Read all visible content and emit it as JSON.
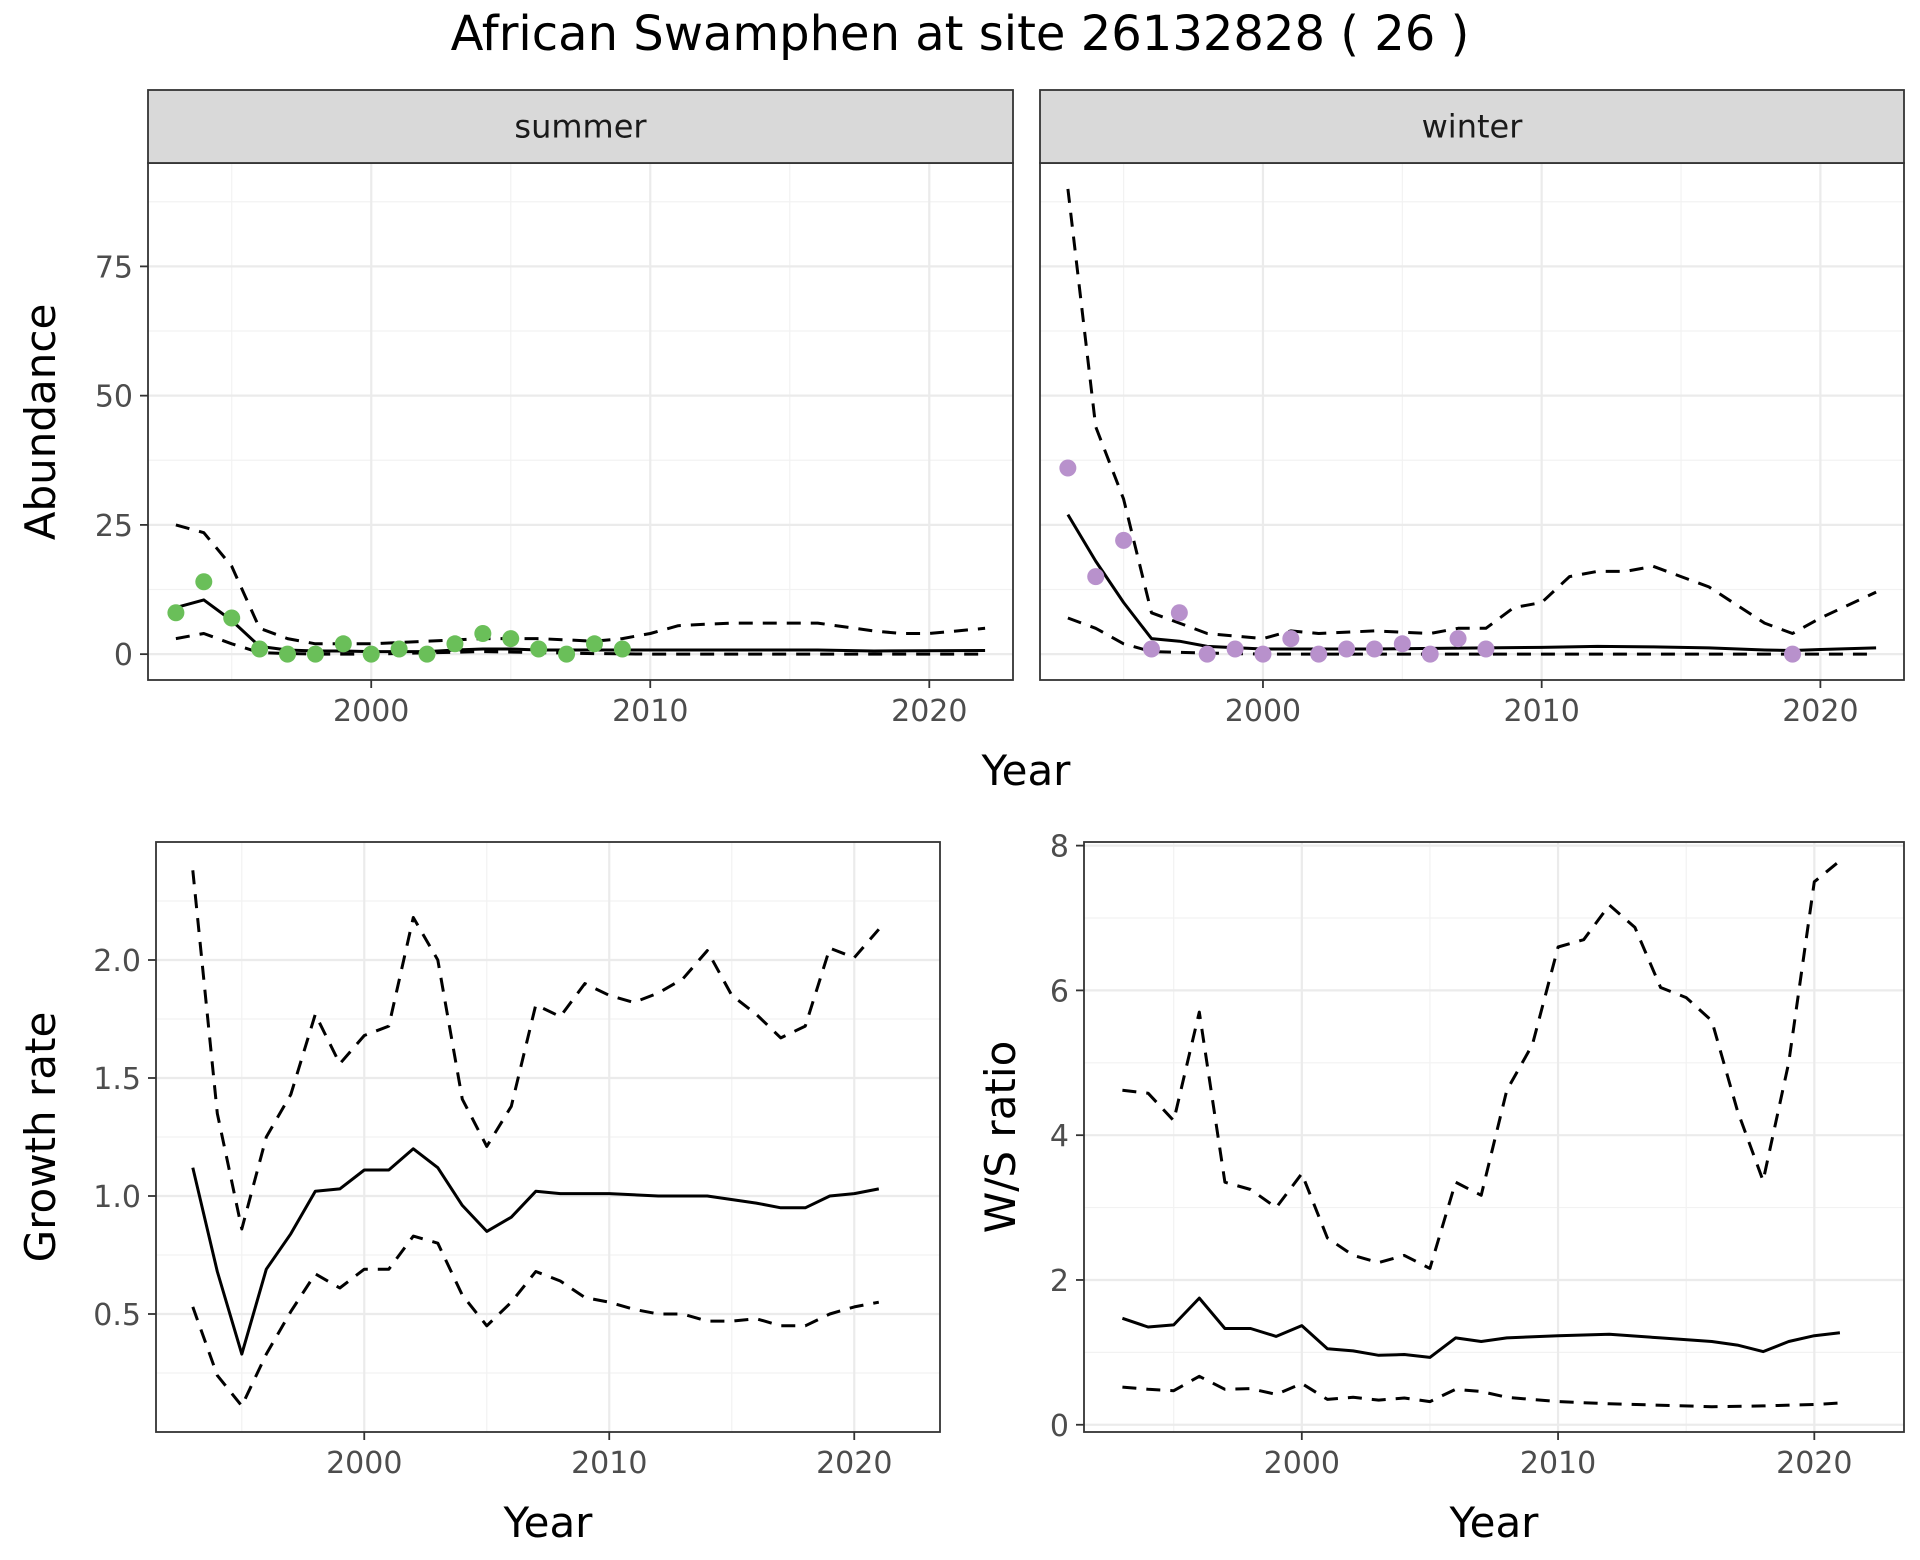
{
  "title": "African Swamphen at site 26132828 ( 26 )",
  "colors": {
    "summer_points": "#6abf59",
    "winter_points": "#b891cc",
    "strip_bg": "#d9d9d9"
  },
  "chart_data": [
    {
      "type": "line",
      "facet": "summer",
      "xlabel": "Year",
      "ylabel": "Abundance",
      "xlim": [
        1992,
        2023
      ],
      "ylim": [
        -5,
        95
      ],
      "x_ticks": [
        2000,
        2010,
        2020
      ],
      "y_ticks": [
        0,
        25,
        50,
        75
      ],
      "points_color": "#6abf59",
      "points": [
        [
          1993,
          8
        ],
        [
          1994,
          14
        ],
        [
          1995,
          7
        ],
        [
          1996,
          1
        ],
        [
          1997,
          0
        ],
        [
          1998,
          0
        ],
        [
          1999,
          2
        ],
        [
          2000,
          0
        ],
        [
          2001,
          1
        ],
        [
          2002,
          0
        ],
        [
          2003,
          2
        ],
        [
          2004,
          4
        ],
        [
          2005,
          3
        ],
        [
          2006,
          1
        ],
        [
          2007,
          0
        ],
        [
          2008,
          2
        ],
        [
          2009,
          1
        ]
      ],
      "estimate": [
        [
          1993,
          9
        ],
        [
          1994,
          10.5
        ],
        [
          1995,
          6.5
        ],
        [
          1996,
          1.5
        ],
        [
          1997,
          0.8
        ],
        [
          1998,
          0.6
        ],
        [
          1999,
          0.6
        ],
        [
          2000,
          0.5
        ],
        [
          2001,
          0.5
        ],
        [
          2002,
          0.5
        ],
        [
          2003,
          0.8
        ],
        [
          2004,
          1
        ],
        [
          2005,
          1
        ],
        [
          2006,
          0.8
        ],
        [
          2007,
          0.8
        ],
        [
          2008,
          0.8
        ],
        [
          2009,
          0.8
        ],
        [
          2012,
          0.8
        ],
        [
          2016,
          0.8
        ],
        [
          2018,
          0.6
        ],
        [
          2022,
          0.7
        ]
      ],
      "lower": [
        [
          1993,
          3
        ],
        [
          1994,
          4
        ],
        [
          1995,
          2
        ],
        [
          1996,
          0.3
        ],
        [
          1997,
          0.1
        ],
        [
          1998,
          0
        ],
        [
          2000,
          0
        ],
        [
          2004,
          0.5
        ],
        [
          2006,
          0.3
        ],
        [
          2008,
          0.1
        ],
        [
          2010,
          0
        ],
        [
          2022,
          0
        ]
      ],
      "upper": [
        [
          1993,
          25
        ],
        [
          1994,
          23.5
        ],
        [
          1995,
          17
        ],
        [
          1996,
          5
        ],
        [
          1997,
          3
        ],
        [
          1998,
          2
        ],
        [
          2000,
          2
        ],
        [
          2002,
          2.5
        ],
        [
          2004,
          3
        ],
        [
          2006,
          3
        ],
        [
          2008,
          2.5
        ],
        [
          2009,
          3
        ],
        [
          2010,
          4
        ],
        [
          2011,
          5.5
        ],
        [
          2012,
          5.8
        ],
        [
          2013,
          6
        ],
        [
          2016,
          6
        ],
        [
          2018,
          4.5
        ],
        [
          2019,
          4
        ],
        [
          2020,
          4
        ],
        [
          2022,
          5
        ]
      ]
    },
    {
      "type": "line",
      "facet": "winter",
      "xlabel": "Year",
      "ylabel": "Abundance",
      "xlim": [
        1992,
        2023
      ],
      "ylim": [
        -5,
        95
      ],
      "x_ticks": [
        2000,
        2010,
        2020
      ],
      "y_ticks": [
        0,
        25,
        50,
        75
      ],
      "points_color": "#b891cc",
      "points": [
        [
          1993,
          36
        ],
        [
          1994,
          15
        ],
        [
          1995,
          22
        ],
        [
          1996,
          1
        ],
        [
          1997,
          8
        ],
        [
          1998,
          0
        ],
        [
          1999,
          1
        ],
        [
          2000,
          0
        ],
        [
          2001,
          3
        ],
        [
          2002,
          0
        ],
        [
          2003,
          1
        ],
        [
          2004,
          1
        ],
        [
          2005,
          2
        ],
        [
          2006,
          0
        ],
        [
          2007,
          3
        ],
        [
          2008,
          1
        ],
        [
          2019,
          0
        ]
      ],
      "estimate": [
        [
          1993,
          27
        ],
        [
          1994,
          18
        ],
        [
          1995,
          10
        ],
        [
          1996,
          3
        ],
        [
          1997,
          2.5
        ],
        [
          1998,
          1.5
        ],
        [
          2000,
          1
        ],
        [
          2004,
          1
        ],
        [
          2008,
          1.2
        ],
        [
          2010,
          1.3
        ],
        [
          2012,
          1.5
        ],
        [
          2014,
          1.4
        ],
        [
          2016,
          1.2
        ],
        [
          2018,
          0.8
        ],
        [
          2019,
          0.7
        ],
        [
          2020,
          0.9
        ],
        [
          2022,
          1.2
        ]
      ],
      "lower": [
        [
          1993,
          7
        ],
        [
          1994,
          5
        ],
        [
          1995,
          2
        ],
        [
          1996,
          0.5
        ],
        [
          1998,
          0.2
        ],
        [
          2000,
          0
        ],
        [
          2022,
          0
        ]
      ],
      "upper": [
        [
          1993,
          90
        ],
        [
          1994,
          44
        ],
        [
          1995,
          30
        ],
        [
          1996,
          8
        ],
        [
          1997,
          6
        ],
        [
          1998,
          4
        ],
        [
          2000,
          3
        ],
        [
          2001,
          4.5
        ],
        [
          2002,
          4
        ],
        [
          2004,
          4.5
        ],
        [
          2006,
          4
        ],
        [
          2007,
          5
        ],
        [
          2008,
          5
        ],
        [
          2009,
          9
        ],
        [
          2010,
          10
        ],
        [
          2011,
          15
        ],
        [
          2012,
          16
        ],
        [
          2013,
          16
        ],
        [
          2014,
          17
        ],
        [
          2016,
          13
        ],
        [
          2018,
          6
        ],
        [
          2019,
          4
        ],
        [
          2020,
          7
        ],
        [
          2022,
          12
        ]
      ]
    },
    {
      "type": "line",
      "xlabel": "Year",
      "ylabel": "Growth rate",
      "xlim": [
        1991.5,
        2023.5
      ],
      "ylim": [
        0,
        2.5
      ],
      "x_ticks": [
        2000,
        2010,
        2020
      ],
      "y_ticks": [
        0.5,
        1.0,
        1.5,
        2.0
      ],
      "y_tick_labels": [
        "0.5",
        "1.0",
        "1.5",
        "2.0"
      ],
      "estimate": [
        [
          1993,
          1.12
        ],
        [
          1994,
          0.68
        ],
        [
          1995,
          0.33
        ],
        [
          1996,
          0.69
        ],
        [
          1997,
          0.84
        ],
        [
          1998,
          1.02
        ],
        [
          1999,
          1.03
        ],
        [
          2000,
          1.11
        ],
        [
          2001,
          1.11
        ],
        [
          2002,
          1.2
        ],
        [
          2003,
          1.12
        ],
        [
          2004,
          0.96
        ],
        [
          2005,
          0.85
        ],
        [
          2006,
          0.91
        ],
        [
          2007,
          1.02
        ],
        [
          2008,
          1.01
        ],
        [
          2010,
          1.01
        ],
        [
          2012,
          1.0
        ],
        [
          2014,
          1.0
        ],
        [
          2016,
          0.97
        ],
        [
          2017,
          0.95
        ],
        [
          2018,
          0.95
        ],
        [
          2019,
          1.0
        ],
        [
          2020,
          1.01
        ],
        [
          2021,
          1.03
        ]
      ],
      "lower": [
        [
          1993,
          0.53
        ],
        [
          1994,
          0.24
        ],
        [
          1995,
          0.11
        ],
        [
          1996,
          0.33
        ],
        [
          1997,
          0.51
        ],
        [
          1998,
          0.67
        ],
        [
          1999,
          0.61
        ],
        [
          2000,
          0.69
        ],
        [
          2001,
          0.69
        ],
        [
          2002,
          0.83
        ],
        [
          2003,
          0.8
        ],
        [
          2004,
          0.58
        ],
        [
          2005,
          0.45
        ],
        [
          2006,
          0.55
        ],
        [
          2007,
          0.68
        ],
        [
          2008,
          0.64
        ],
        [
          2009,
          0.57
        ],
        [
          2010,
          0.55
        ],
        [
          2011,
          0.52
        ],
        [
          2012,
          0.5
        ],
        [
          2013,
          0.5
        ],
        [
          2014,
          0.47
        ],
        [
          2015,
          0.47
        ],
        [
          2016,
          0.48
        ],
        [
          2017,
          0.45
        ],
        [
          2018,
          0.45
        ],
        [
          2019,
          0.5
        ],
        [
          2020,
          0.53
        ],
        [
          2021,
          0.55
        ]
      ],
      "upper": [
        [
          1993,
          2.38
        ],
        [
          1994,
          1.35
        ],
        [
          1995,
          0.86
        ],
        [
          1996,
          1.25
        ],
        [
          1997,
          1.43
        ],
        [
          1998,
          1.77
        ],
        [
          1999,
          1.56
        ],
        [
          2000,
          1.68
        ],
        [
          2001,
          1.72
        ],
        [
          2002,
          2.18
        ],
        [
          2003,
          2.0
        ],
        [
          2004,
          1.41
        ],
        [
          2005,
          1.21
        ],
        [
          2006,
          1.38
        ],
        [
          2007,
          1.81
        ],
        [
          2008,
          1.76
        ],
        [
          2009,
          1.9
        ],
        [
          2010,
          1.85
        ],
        [
          2011,
          1.82
        ],
        [
          2012,
          1.86
        ],
        [
          2013,
          1.92
        ],
        [
          2014,
          2.04
        ],
        [
          2015,
          1.85
        ],
        [
          2016,
          1.77
        ],
        [
          2017,
          1.67
        ],
        [
          2018,
          1.72
        ],
        [
          2019,
          2.05
        ],
        [
          2020,
          2.01
        ],
        [
          2021,
          2.13
        ]
      ]
    },
    {
      "type": "line",
      "xlabel": "Year",
      "ylabel": "W/S ratio",
      "xlim": [
        1991.5,
        2023.5
      ],
      "ylim": [
        -0.1,
        8.05
      ],
      "x_ticks": [
        2000,
        2010,
        2020
      ],
      "y_ticks": [
        0,
        2,
        4,
        6,
        8
      ],
      "estimate": [
        [
          1993,
          1.47
        ],
        [
          1994,
          1.35
        ],
        [
          1995,
          1.38
        ],
        [
          1996,
          1.75
        ],
        [
          1997,
          1.33
        ],
        [
          1998,
          1.33
        ],
        [
          1999,
          1.22
        ],
        [
          2000,
          1.37
        ],
        [
          2001,
          1.05
        ],
        [
          2002,
          1.02
        ],
        [
          2003,
          0.96
        ],
        [
          2004,
          0.97
        ],
        [
          2005,
          0.93
        ],
        [
          2006,
          1.2
        ],
        [
          2007,
          1.15
        ],
        [
          2008,
          1.2
        ],
        [
          2010,
          1.23
        ],
        [
          2012,
          1.25
        ],
        [
          2014,
          1.2
        ],
        [
          2016,
          1.15
        ],
        [
          2017,
          1.1
        ],
        [
          2018,
          1.01
        ],
        [
          2019,
          1.15
        ],
        [
          2020,
          1.23
        ],
        [
          2021,
          1.27
        ]
      ],
      "lower": [
        [
          1993,
          0.52
        ],
        [
          1994,
          0.49
        ],
        [
          1995,
          0.47
        ],
        [
          1996,
          0.67
        ],
        [
          1997,
          0.49
        ],
        [
          1998,
          0.5
        ],
        [
          1999,
          0.42
        ],
        [
          2000,
          0.57
        ],
        [
          2001,
          0.35
        ],
        [
          2002,
          0.38
        ],
        [
          2003,
          0.34
        ],
        [
          2004,
          0.37
        ],
        [
          2005,
          0.32
        ],
        [
          2006,
          0.49
        ],
        [
          2007,
          0.46
        ],
        [
          2008,
          0.38
        ],
        [
          2010,
          0.32
        ],
        [
          2012,
          0.29
        ],
        [
          2014,
          0.27
        ],
        [
          2016,
          0.25
        ],
        [
          2018,
          0.26
        ],
        [
          2020,
          0.28
        ],
        [
          2021,
          0.3
        ]
      ],
      "upper": [
        [
          1993,
          4.62
        ],
        [
          1994,
          4.58
        ],
        [
          1995,
          4.2
        ],
        [
          1996,
          5.7
        ],
        [
          1997,
          3.35
        ],
        [
          1998,
          3.25
        ],
        [
          1999,
          3.0
        ],
        [
          2000,
          3.47
        ],
        [
          2001,
          2.58
        ],
        [
          2002,
          2.34
        ],
        [
          2003,
          2.24
        ],
        [
          2004,
          2.34
        ],
        [
          2005,
          2.16
        ],
        [
          2006,
          3.35
        ],
        [
          2007,
          3.17
        ],
        [
          2008,
          4.62
        ],
        [
          2009,
          5.25
        ],
        [
          2010,
          6.6
        ],
        [
          2011,
          6.7
        ],
        [
          2012,
          7.18
        ],
        [
          2013,
          6.87
        ],
        [
          2014,
          6.04
        ],
        [
          2015,
          5.9
        ],
        [
          2016,
          5.58
        ],
        [
          2017,
          4.34
        ],
        [
          2018,
          3.37
        ],
        [
          2019,
          5.0
        ],
        [
          2020,
          7.5
        ],
        [
          2021,
          7.79
        ]
      ]
    }
  ]
}
